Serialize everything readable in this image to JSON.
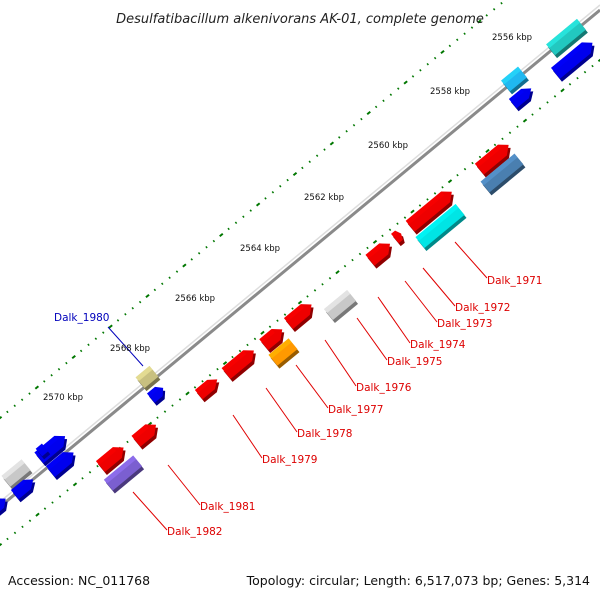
{
  "title": "Desulfatibacillum alkenivorans AK-01, complete genome",
  "footer": {
    "accession": "Accession: NC_011768",
    "topology": "Topology: circular; Length: 6,517,073 bp; Genes: 5,314"
  },
  "scale_labels": [
    "2556 kbp",
    "2558 kbp",
    "2560 kbp",
    "2562 kbp",
    "2564 kbp",
    "2566 kbp",
    "2568 kbp",
    "2570 kbp"
  ],
  "gene_labels": [
    {
      "text": "Dalk_1971",
      "color": "#dd0000"
    },
    {
      "text": "Dalk_1972",
      "color": "#dd0000"
    },
    {
      "text": "Dalk_1973",
      "color": "#dd0000"
    },
    {
      "text": "Dalk_1974",
      "color": "#dd0000"
    },
    {
      "text": "Dalk_1975",
      "color": "#dd0000"
    },
    {
      "text": "Dalk_1976",
      "color": "#dd0000"
    },
    {
      "text": "Dalk_1977",
      "color": "#dd0000"
    },
    {
      "text": "Dalk_1978",
      "color": "#dd0000"
    },
    {
      "text": "Dalk_1979",
      "color": "#dd0000"
    },
    {
      "text": "Dalk_1980",
      "color": "#0000bb"
    },
    {
      "text": "Dalk_1981",
      "color": "#dd0000"
    },
    {
      "text": "Dalk_1982",
      "color": "#dd0000"
    }
  ],
  "colors": {
    "red": "#ee0000",
    "blue": "#0000ee",
    "cyan": "#00e5e5",
    "teal": "#22c8c0",
    "skyblue": "#20b8f0",
    "steelblue": "#4a7fb0",
    "gray": "#c8c8c8",
    "orange": "#ff9900",
    "khaki": "#c8c080",
    "purple": "#7b5fd0",
    "backbone": "#8a8a8a",
    "tick": "#007700"
  }
}
